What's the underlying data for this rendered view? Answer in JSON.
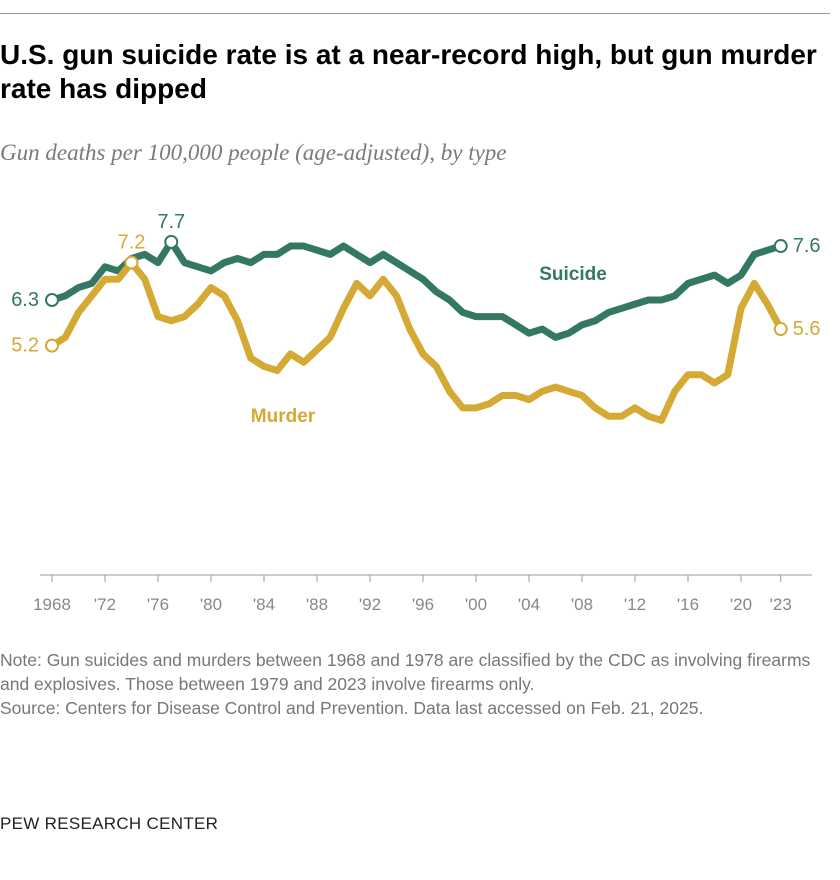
{
  "title": "U.S. gun suicide rate is at a near-record high, but gun murder rate has dipped",
  "subtitle": "Gun deaths per 100,000 people (age-adjusted), by type",
  "notes": {
    "note": "Note: Gun suicides and murders between 1968 and 1978 are classified by the CDC as involving firearms and explosives. Those between 1979 and 2023 involve firearms only.",
    "source": "Source: Centers for Disease Control and Prevention. Data last accessed on Feb. 21, 2025."
  },
  "brand": "PEW RESEARCH CENTER",
  "colors": {
    "suicide": "#347863",
    "murder": "#D4AA35",
    "axis": "#9a9a9a",
    "tick_text": "#888888"
  },
  "chart_data": {
    "type": "line",
    "title": "U.S. gun suicide rate is at a near-record high, but gun murder rate has dipped",
    "subtitle": "Gun deaths per 100,000 people (age-adjusted), by type",
    "x": [
      1968,
      1969,
      1970,
      1971,
      1972,
      1973,
      1974,
      1975,
      1976,
      1977,
      1978,
      1979,
      1980,
      1981,
      1982,
      1983,
      1984,
      1985,
      1986,
      1987,
      1988,
      1989,
      1990,
      1991,
      1992,
      1993,
      1994,
      1995,
      1996,
      1997,
      1998,
      1999,
      2000,
      2001,
      2002,
      2003,
      2004,
      2005,
      2006,
      2007,
      2008,
      2009,
      2010,
      2011,
      2012,
      2013,
      2014,
      2015,
      2016,
      2017,
      2018,
      2019,
      2020,
      2021,
      2022,
      2023
    ],
    "xticks": [
      {
        "year": 1968,
        "label": "1968"
      },
      {
        "year": 1972,
        "label": "'72"
      },
      {
        "year": 1976,
        "label": "'76"
      },
      {
        "year": 1980,
        "label": "'80"
      },
      {
        "year": 1984,
        "label": "'84"
      },
      {
        "year": 1988,
        "label": "'88"
      },
      {
        "year": 1992,
        "label": "'92"
      },
      {
        "year": 1996,
        "label": "'96"
      },
      {
        "year": 2000,
        "label": "'00"
      },
      {
        "year": 2004,
        "label": "'04"
      },
      {
        "year": 2008,
        "label": "'08"
      },
      {
        "year": 2012,
        "label": "'12"
      },
      {
        "year": 2016,
        "label": "'16"
      },
      {
        "year": 2020,
        "label": "'20"
      },
      {
        "year": 2023,
        "label": "'23"
      }
    ],
    "ylim": [
      0,
      8
    ],
    "grid": false,
    "series": [
      {
        "name": "Suicide",
        "color": "#347863",
        "values": [
          6.3,
          6.4,
          6.6,
          6.7,
          7.1,
          7.0,
          7.3,
          7.4,
          7.2,
          7.7,
          7.2,
          7.1,
          7.0,
          7.2,
          7.3,
          7.2,
          7.4,
          7.4,
          7.6,
          7.6,
          7.5,
          7.4,
          7.6,
          7.4,
          7.2,
          7.4,
          7.2,
          7.0,
          6.8,
          6.5,
          6.3,
          6.0,
          5.9,
          5.9,
          5.9,
          5.7,
          5.5,
          5.6,
          5.4,
          5.5,
          5.7,
          5.8,
          6.0,
          6.1,
          6.2,
          6.3,
          6.3,
          6.4,
          6.7,
          6.8,
          6.9,
          6.7,
          6.9,
          7.4,
          7.5,
          7.6
        ],
        "labels": [
          {
            "year": 1968,
            "text": "6.3",
            "side": "left"
          },
          {
            "year": 1977,
            "text": "7.7",
            "side": "top"
          },
          {
            "year": 2023,
            "text": "7.6",
            "side": "right"
          }
        ]
      },
      {
        "name": "Murder",
        "color": "#D4AA35",
        "values": [
          5.2,
          5.4,
          6.0,
          6.4,
          6.8,
          6.8,
          7.2,
          6.8,
          5.9,
          5.8,
          5.9,
          6.2,
          6.6,
          6.4,
          5.8,
          4.9,
          4.7,
          4.6,
          5.0,
          4.8,
          5.1,
          5.4,
          6.1,
          6.7,
          6.4,
          6.8,
          6.4,
          5.6,
          5.0,
          4.7,
          4.1,
          3.7,
          3.7,
          3.8,
          4.0,
          4.0,
          3.9,
          4.1,
          4.2,
          4.1,
          4.0,
          3.7,
          3.5,
          3.5,
          3.7,
          3.5,
          3.4,
          4.1,
          4.5,
          4.5,
          4.3,
          4.5,
          6.1,
          6.7,
          6.2,
          5.6
        ],
        "labels": [
          {
            "year": 1968,
            "text": "5.2",
            "side": "left"
          },
          {
            "year": 1974,
            "text": "7.2",
            "side": "top"
          },
          {
            "year": 2023,
            "text": "5.6",
            "side": "right"
          }
        ]
      }
    ]
  }
}
